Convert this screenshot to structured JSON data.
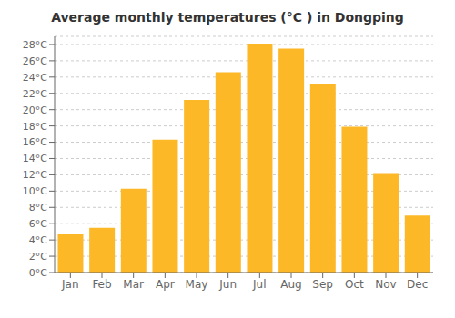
{
  "chart_data": {
    "type": "bar",
    "title": "Average monthly temperatures (°C ) in Dongping",
    "categories": [
      "Jan",
      "Feb",
      "Mar",
      "Apr",
      "May",
      "Jun",
      "Jul",
      "Aug",
      "Sep",
      "Oct",
      "Nov",
      "Dec"
    ],
    "values": [
      4.7,
      5.5,
      10.3,
      16.3,
      21.2,
      24.6,
      28.1,
      27.5,
      23.1,
      17.9,
      12.2,
      7.0
    ],
    "color": "#FDB827",
    "ylim": [
      0,
      29
    ],
    "yticks": [
      {
        "value": 0,
        "label": "0°C"
      },
      {
        "value": 2,
        "label": "2°C"
      },
      {
        "value": 4,
        "label": "4°C"
      },
      {
        "value": 6,
        "label": "6°C"
      },
      {
        "value": 8,
        "label": "8°C"
      },
      {
        "value": 10,
        "label": "10°C"
      },
      {
        "value": 12,
        "label": "12°C"
      },
      {
        "value": 14,
        "label": "14°C"
      },
      {
        "value": 16,
        "label": "16°C"
      },
      {
        "value": 18,
        "label": "18°C"
      },
      {
        "value": 20,
        "label": "20°C"
      },
      {
        "value": 22,
        "label": "22°C"
      },
      {
        "value": 24,
        "label": "24°C"
      },
      {
        "value": 26,
        "label": "26°C"
      },
      {
        "value": 28,
        "label": "28°C"
      }
    ],
    "grid": true
  }
}
